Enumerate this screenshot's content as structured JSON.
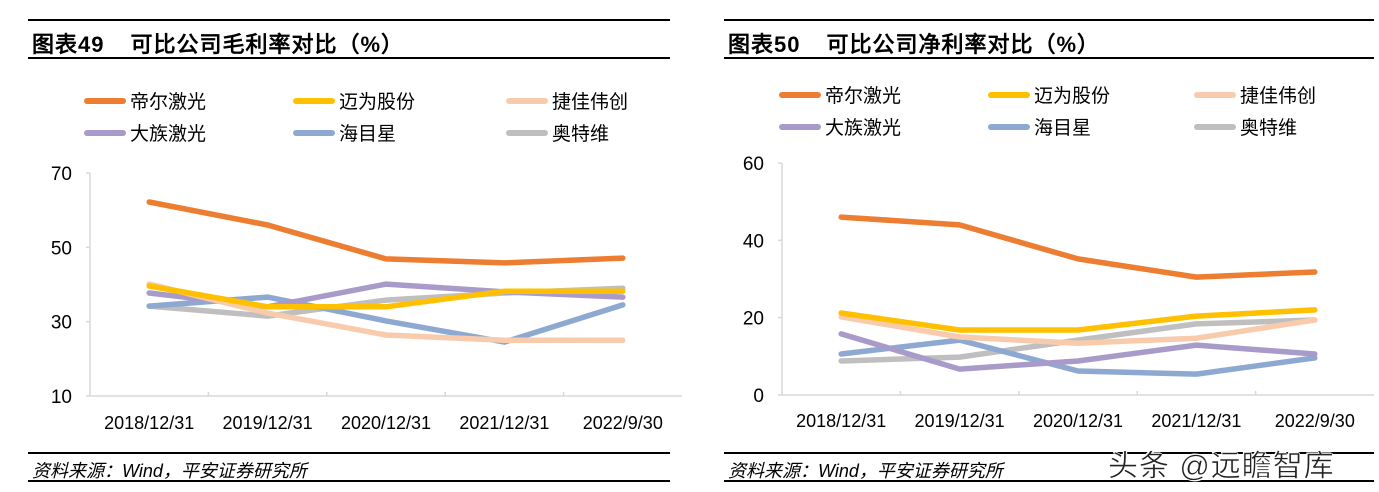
{
  "chart_data": [
    {
      "type": "line",
      "figure_label": "图表49",
      "title": "可比公司毛利率对比（%）",
      "xlabel": "",
      "ylabel": "",
      "categories": [
        "2018/12/31",
        "2019/12/31",
        "2020/12/31",
        "2021/12/31",
        "2022/9/30"
      ],
      "ylim": [
        10,
        70
      ],
      "yticks": [
        10,
        30,
        50,
        70
      ],
      "grid": false,
      "legend_position": "top",
      "series": [
        {
          "name": "帝尔激光",
          "color": "#ED7D31",
          "values": [
            62.2,
            56.0,
            46.9,
            45.8,
            47.1
          ]
        },
        {
          "name": "迈为股份",
          "color": "#FFC000",
          "values": [
            39.6,
            34.0,
            34.0,
            38.2,
            38.2
          ]
        },
        {
          "name": "捷佳伟创",
          "color": "#F8CBAD",
          "values": [
            40.1,
            32.3,
            26.4,
            25.0,
            25.0
          ]
        },
        {
          "name": "大族激光",
          "color": "#A99BC9",
          "values": [
            37.7,
            34.0,
            40.1,
            38.0,
            36.6
          ]
        },
        {
          "name": "海目星",
          "color": "#8EA9D1",
          "values": [
            34.2,
            36.6,
            30.2,
            24.5,
            34.5
          ]
        },
        {
          "name": "奥特维",
          "color": "#BFBFBF",
          "values": [
            34.2,
            31.5,
            35.8,
            37.7,
            39.0
          ]
        }
      ],
      "source": "资料来源：Wind，平安证券研究所"
    },
    {
      "type": "line",
      "figure_label": "图表50",
      "title": "可比公司净利率对比（%）",
      "xlabel": "",
      "ylabel": "",
      "categories": [
        "2018/12/31",
        "2019/12/31",
        "2020/12/31",
        "2021/12/31",
        "2022/9/30"
      ],
      "ylim": [
        0,
        60
      ],
      "yticks": [
        0,
        20,
        40,
        60
      ],
      "grid": false,
      "legend_position": "top",
      "series": [
        {
          "name": "帝尔激光",
          "color": "#ED7D31",
          "values": [
            46.0,
            44.0,
            35.2,
            30.5,
            31.8
          ]
        },
        {
          "name": "迈为股份",
          "color": "#FFC000",
          "values": [
            21.2,
            16.8,
            16.8,
            20.4,
            22.0
          ]
        },
        {
          "name": "捷佳伟创",
          "color": "#F8CBAD",
          "values": [
            20.2,
            15.0,
            13.4,
            14.7,
            19.4
          ]
        },
        {
          "name": "大族激光",
          "color": "#A99BC9",
          "values": [
            15.8,
            6.7,
            8.8,
            12.9,
            10.6
          ]
        },
        {
          "name": "海目星",
          "color": "#8EA9D1",
          "values": [
            10.6,
            14.2,
            6.2,
            5.4,
            9.6
          ]
        },
        {
          "name": "奥特维",
          "color": "#BFBFBF",
          "values": [
            8.8,
            9.8,
            14.2,
            18.4,
            19.4
          ]
        }
      ],
      "source": "资料来源：Wind，平安证券研究所"
    }
  ],
  "watermark": "头条 @远瞻智库",
  "axis_color": "#D9D9D9"
}
